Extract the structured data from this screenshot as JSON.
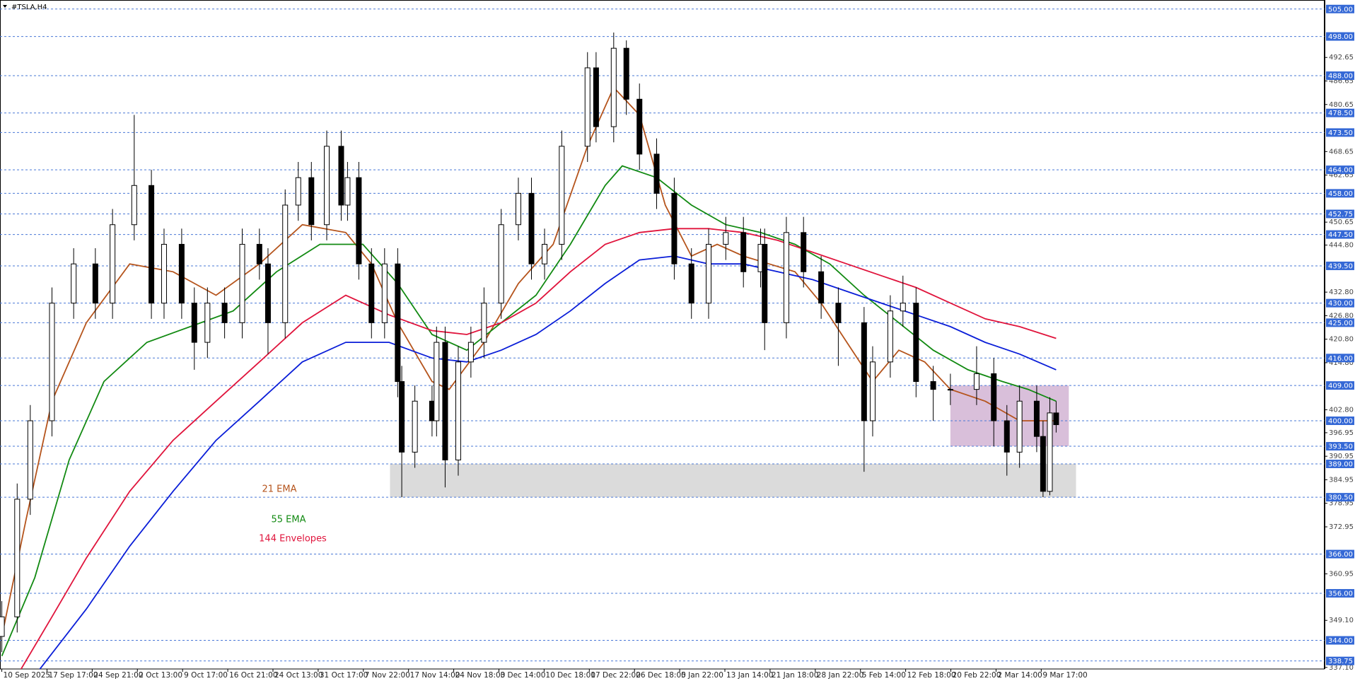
{
  "chart_data": {
    "type": "candlestick",
    "title": "#TSLA,H4",
    "xlim": [
      -0.04,
      29.27
    ],
    "ylim": [
      336.7,
      507.3
    ],
    "categories": [
      "10 Sep 2025",
      "17 Sep 17:00",
      "24 Sep 21:00",
      "2 Oct 13:00",
      "9 Oct 17:00",
      "16 Oct 21:00",
      "24 Oct 13:00",
      "31 Oct 17:00",
      "7 Nov 22:00",
      "17 Nov 14:00",
      "24 Nov 18:00",
      "3 Dec 14:00",
      "10 Dec 18:00",
      "17 Dec 22:00",
      "26 Dec 18:00",
      "5 Jan 22:00",
      "13 Jan 14:00",
      "21 Jan 18:00",
      "28 Jan 22:00",
      "5 Feb 14:00",
      "12 Feb 18:00",
      "20 Feb 22:00",
      "2 Mar 14:00",
      "9 Mar 17:00"
    ],
    "yticks": [
      {
        "value": 492.65,
        "label": "492.65"
      },
      {
        "value": 486.65,
        "label": "486.65"
      },
      {
        "value": 480.65,
        "label": "480.65"
      },
      {
        "value": 468.65,
        "label": "468.65"
      },
      {
        "value": 462.65,
        "label": "462.65"
      },
      {
        "value": 450.65,
        "label": "450.65"
      },
      {
        "value": 444.8,
        "label": "444.80"
      },
      {
        "value": 432.8,
        "label": "432.80"
      },
      {
        "value": 426.8,
        "label": "426.80"
      },
      {
        "value": 420.8,
        "label": "420.80"
      },
      {
        "value": 414.8,
        "label": "414.80"
      },
      {
        "value": 402.8,
        "label": "402.80"
      },
      {
        "value": 396.95,
        "label": "396.95"
      },
      {
        "value": 390.95,
        "label": "390.95"
      },
      {
        "value": 384.95,
        "label": "384.95"
      },
      {
        "value": 378.95,
        "label": "378.95"
      },
      {
        "value": 372.95,
        "label": "372.95"
      },
      {
        "value": 360.95,
        "label": "360.95"
      },
      {
        "value": 349.1,
        "label": "349.10"
      },
      {
        "value": 337.1,
        "label": "337.10"
      }
    ],
    "levels": [
      {
        "value": 505,
        "label": "505.00"
      },
      {
        "value": 498,
        "label": "498.00"
      },
      {
        "value": 488,
        "label": "488.00"
      },
      {
        "value": 478.5,
        "label": "478.50"
      },
      {
        "value": 473.5,
        "label": "473.50"
      },
      {
        "value": 464,
        "label": "464.00"
      },
      {
        "value": 458,
        "label": "458.00"
      },
      {
        "value": 452.75,
        "label": "452.75"
      },
      {
        "value": 447.5,
        "label": "447.50"
      },
      {
        "value": 439.5,
        "label": "439.50"
      },
      {
        "value": 430,
        "label": "430.00"
      },
      {
        "value": 425,
        "label": "425.00"
      },
      {
        "value": 416,
        "label": "416.00"
      },
      {
        "value": 409,
        "label": "409.00"
      },
      {
        "value": 400,
        "label": "400.00"
      },
      {
        "value": 393.5,
        "label": "393.50"
      },
      {
        "value": 389,
        "label": "389.00"
      },
      {
        "value": 380.5,
        "label": "380.50"
      },
      {
        "value": 366,
        "label": "366.00"
      },
      {
        "value": 356,
        "label": "356.00"
      },
      {
        "value": 344,
        "label": "344.00"
      },
      {
        "value": 338.75,
        "label": "338.75"
      }
    ],
    "zones": [
      {
        "xlim": [
          8.59,
          23.77
        ],
        "ylim": [
          380.5,
          389
        ],
        "color": "#d9d9d9"
      },
      {
        "xlim": [
          20.99,
          23.61
        ],
        "ylim": [
          393.5,
          409
        ],
        "color": "#d7bcd8"
      }
    ],
    "candles": {
      "x": [
        0,
        0.34,
        0.63,
        1.11,
        1.59,
        2.07,
        2.45,
        2.93,
        3.31,
        3.59,
        3.98,
        4.26,
        4.55,
        4.93,
        5.32,
        5.7,
        5.89,
        6.27,
        6.56,
        6.85,
        7.19,
        7.51,
        7.65,
        7.9,
        8.18,
        8.47,
        8.76,
        8.85,
        9.14,
        9.52,
        9.62,
        9.81,
        10.1,
        10.38,
        10.67,
        11.05,
        11.43,
        11.72,
        12.01,
        12.39,
        12.96,
        13.15,
        13.54,
        13.82,
        14.11,
        14.49,
        14.88,
        15.26,
        15.64,
        16.02,
        16.41,
        16.79,
        16.88,
        17.36,
        17.74,
        18.13,
        18.51,
        19.08,
        19.27,
        19.66,
        19.94,
        20.23,
        20.61,
        20.99,
        21.57,
        21.95,
        22.24,
        22.52,
        22.9,
        23.04,
        23.19,
        23.33
      ],
      "open": [
        345,
        350,
        380,
        400,
        430,
        440,
        430,
        450,
        460,
        430,
        445,
        430,
        420,
        430,
        425,
        445,
        440,
        425,
        455,
        462,
        450,
        470,
        455,
        462,
        440,
        425,
        440,
        410,
        392,
        405,
        400,
        420,
        390,
        415,
        420,
        430,
        450,
        458,
        440,
        445,
        470,
        490,
        475,
        495,
        482,
        468,
        458,
        440,
        430,
        445,
        448,
        438,
        445,
        425,
        448,
        438,
        430,
        425,
        400,
        415,
        428,
        430,
        410,
        408,
        408,
        412,
        400,
        392,
        405,
        396,
        382,
        402
      ],
      "high": [
        354,
        384,
        404,
        434,
        444,
        444,
        454,
        478,
        464,
        449,
        449,
        434,
        434,
        434,
        449,
        449,
        444,
        459,
        466,
        466,
        474,
        474,
        466,
        466,
        444,
        444,
        444,
        414,
        409,
        409,
        424,
        424,
        419,
        424,
        434,
        454,
        462,
        462,
        449,
        474,
        494,
        494,
        499,
        497,
        486,
        472,
        462,
        444,
        449,
        452,
        452,
        449,
        449,
        452,
        452,
        442,
        434,
        429,
        419,
        432,
        437,
        434,
        414,
        412,
        419,
        416,
        404,
        409,
        409,
        400,
        406,
        405
      ],
      "low": [
        341,
        346,
        376,
        396,
        426,
        426,
        426,
        446,
        426,
        426,
        426,
        413,
        416,
        421,
        421,
        436,
        417,
        421,
        451,
        446,
        446,
        451,
        451,
        436,
        421,
        421,
        406,
        380.5,
        388,
        396,
        396,
        383,
        386,
        411,
        416,
        426,
        446,
        436,
        436,
        441,
        466,
        471,
        471,
        478,
        464,
        454,
        436,
        426,
        426,
        441,
        434,
        434,
        418,
        421,
        434,
        426,
        414,
        387,
        396,
        411,
        424,
        406,
        400,
        404,
        404,
        393.5,
        386,
        388,
        392,
        380.5,
        381,
        397
      ],
      "close": [
        350,
        380,
        400,
        430,
        440,
        430,
        450,
        460,
        430,
        445,
        430,
        420,
        430,
        425,
        445,
        440,
        425,
        455,
        462,
        450,
        470,
        455,
        462,
        440,
        425,
        440,
        410,
        392,
        405,
        400,
        420,
        390,
        415,
        420,
        430,
        450,
        458,
        440,
        445,
        470,
        490,
        475,
        495,
        482,
        468,
        458,
        440,
        430,
        445,
        448,
        438,
        445,
        425,
        448,
        438,
        430,
        425,
        400,
        415,
        428,
        430,
        410,
        408,
        408,
        412,
        400,
        392,
        405,
        396,
        382,
        402,
        399
      ]
    },
    "series": [
      {
        "name": "21 EMA",
        "color": "#b5541c",
        "x": [
          0,
          0.54,
          1.11,
          1.87,
          2.83,
          3.79,
          4.74,
          5.7,
          6.65,
          7.61,
          8.18,
          8.76,
          9.52,
          9.9,
          10.67,
          11.43,
          12.2,
          12.96,
          13.54,
          14.11,
          14.68,
          15.26,
          15.83,
          16.41,
          16.98,
          17.55,
          18.13,
          18.7,
          19.27,
          19.85,
          20.42,
          20.99,
          21.76,
          22.52,
          23.29
        ],
        "values": [
          345,
          375,
          405,
          425,
          440,
          438,
          432,
          440,
          450,
          448,
          440,
          425,
          410,
          408,
          420,
          435,
          445,
          470,
          485,
          478,
          455,
          442,
          445,
          442,
          440,
          438,
          430,
          420,
          410,
          418,
          415,
          408,
          405,
          400,
          400
        ]
      },
      {
        "name": "55 EMA",
        "color": "#128a12",
        "x": [
          0,
          0.73,
          1.49,
          2.26,
          3.21,
          4.17,
          5.12,
          6.08,
          7.04,
          7.99,
          8.76,
          9.52,
          10.29,
          11.05,
          11.82,
          12.58,
          13.35,
          13.73,
          14.49,
          15.26,
          16.02,
          16.79,
          17.55,
          18.32,
          19.08,
          19.85,
          20.61,
          21.38,
          22.14,
          22.71,
          23.33
        ],
        "values": [
          340,
          360,
          390,
          410,
          420,
          424,
          428,
          438,
          445,
          445,
          435,
          422,
          418,
          425,
          432,
          445,
          460,
          465,
          462,
          455,
          450,
          448,
          445,
          440,
          432,
          425,
          418,
          413,
          410,
          408,
          405
        ]
      },
      {
        "name": "144 Envelopes",
        "color": "#e0143c",
        "x": [
          0.34,
          1.11,
          1.87,
          2.83,
          3.79,
          4.74,
          5.7,
          6.65,
          7.61,
          8.57,
          9.52,
          10.29,
          11.05,
          11.82,
          12.58,
          13.35,
          14.11,
          14.88,
          15.64,
          16.41,
          17.17,
          17.94,
          18.7,
          19.46,
          20.23,
          20.99,
          21.76,
          22.52,
          23.33
        ],
        "values": [
          335,
          350,
          365,
          382,
          395,
          405,
          415,
          425,
          432,
          427,
          423,
          422,
          425,
          430,
          438,
          445,
          448,
          449,
          449,
          448,
          446,
          443,
          440,
          437,
          434,
          430,
          426,
          424,
          421
        ]
      },
      {
        "color": "#0a1ed8",
        "x": [
          0.73,
          1.87,
          2.83,
          3.79,
          4.74,
          5.7,
          6.65,
          7.61,
          8.57,
          9.52,
          10.29,
          11.05,
          11.82,
          12.58,
          13.35,
          14.11,
          14.88,
          15.64,
          16.41,
          17.17,
          17.94,
          18.7,
          19.46,
          20.23,
          20.99,
          21.76,
          22.52,
          23.33
        ],
        "values": [
          335,
          352,
          368,
          382,
          395,
          405,
          415,
          420,
          420,
          416,
          415,
          418,
          422,
          428,
          435,
          441,
          442,
          440,
          440,
          438,
          436,
          433,
          430,
          427,
          424,
          420,
          417,
          413
        ]
      }
    ]
  }
}
